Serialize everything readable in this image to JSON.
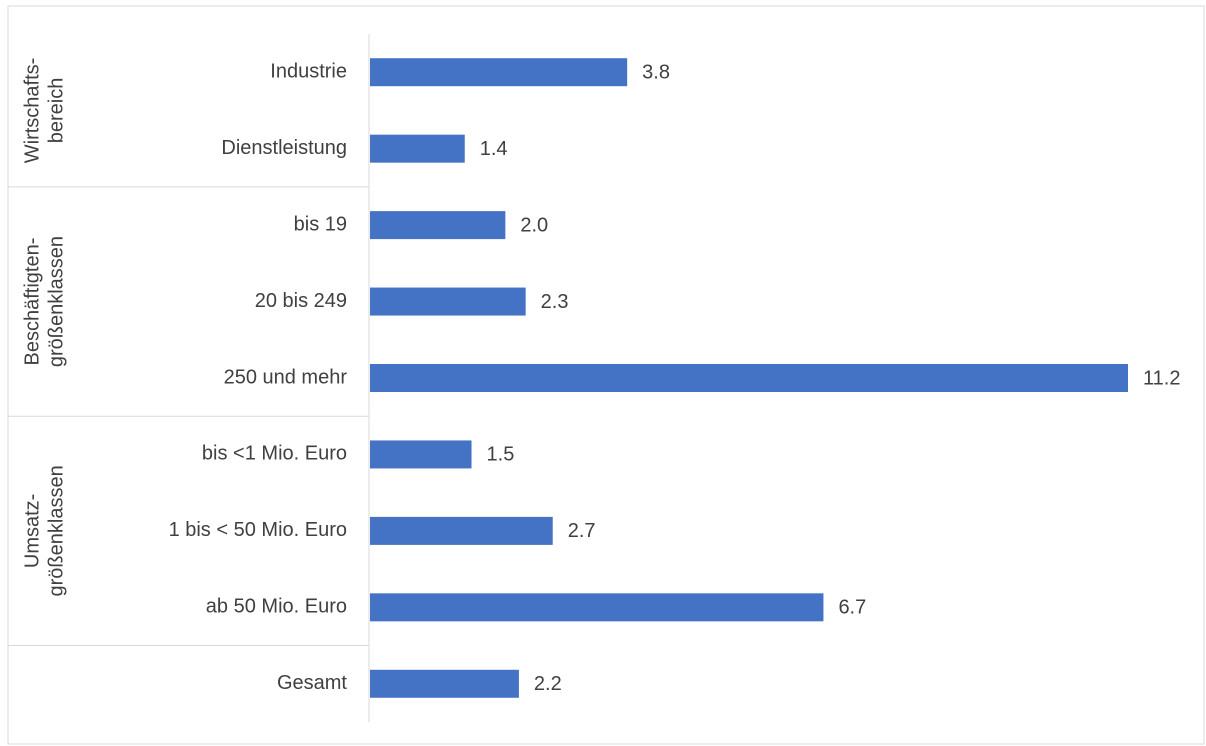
{
  "chart_data": {
    "type": "bar",
    "orientation": "horizontal",
    "categories": [
      "Industrie",
      "Dienstleistung",
      "bis 19",
      "20 bis 249",
      "250 und mehr",
      "bis <1 Mio. Euro",
      "1 bis < 50 Mio. Euro",
      "ab 50 Mio. Euro",
      "Gesamt"
    ],
    "values": [
      3.8,
      1.4,
      2.0,
      2.3,
      11.2,
      1.5,
      2.7,
      6.7,
      2.2
    ],
    "value_labels": [
      "3.8",
      "1.4",
      "2.0",
      "2.3",
      "11.2",
      "1.5",
      "2.7",
      "6.7",
      "2.2"
    ],
    "groups": [
      {
        "lines": [
          "Wirtschafts-",
          "bereich"
        ],
        "start": 0,
        "end": 1
      },
      {
        "lines": [
          "Beschäftigten-",
          "größenklassen"
        ],
        "start": 2,
        "end": 4
      },
      {
        "lines": [
          "Umsatz-",
          "größenklassen"
        ],
        "start": 5,
        "end": 7
      },
      {
        "lines": [],
        "start": 8,
        "end": 8
      }
    ],
    "xlim": [
      0,
      11.2
    ],
    "bar_color": "#4472c4",
    "title": "",
    "xlabel": "",
    "ylabel": ""
  }
}
